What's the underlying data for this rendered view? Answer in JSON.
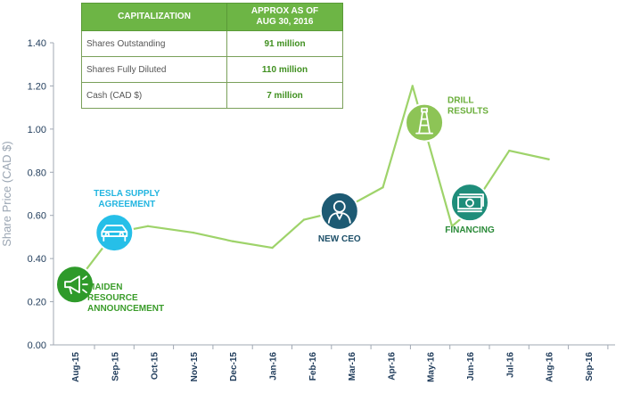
{
  "colors": {
    "line": "#9ed36a",
    "axis": "#a0a8b3",
    "tick_text": "#1f3b5a",
    "ylabel": "#9ba6b3",
    "table_header": "#6db545",
    "green_dark": "#2e9a2a",
    "green_light": "#8dc456",
    "blue_dark": "#1d5a73",
    "teal": "#1e8d7a",
    "cyan": "#26bfe8"
  },
  "capitalization": {
    "header_left": "CAPITALIZATION",
    "header_right_line1": "APPROX AS OF",
    "header_right_line2": "AUG 30, 2016",
    "rows": [
      {
        "label": "Shares Outstanding",
        "value": "91 million"
      },
      {
        "label": "Shares Fully Diluted",
        "value": "110 million"
      },
      {
        "label": "Cash (CAD $)",
        "value": "7 million"
      }
    ]
  },
  "chart_data": {
    "type": "line",
    "title": "",
    "xlabel": "",
    "ylabel": "Share Price (CAD $)",
    "ylim": [
      0,
      1.4
    ],
    "yticks": [
      "0.00",
      "0.20",
      "0.40",
      "0.60",
      "0.80",
      "1.00",
      "1.20",
      "1.40"
    ],
    "categories": [
      "Aug-15",
      "Sep-15",
      "Oct-15",
      "Nov-15",
      "Dec-15",
      "Jan-16",
      "Feb-16",
      "Mar-16",
      "Apr-16",
      "May-16",
      "Jun-16",
      "Jul-16",
      "Aug-16",
      "Sep-16"
    ],
    "points": [
      {
        "x": 0.0,
        "y": 0.28
      },
      {
        "x": 1.0,
        "y": 0.52
      },
      {
        "x": 1.85,
        "y": 0.55
      },
      {
        "x": 3.0,
        "y": 0.52
      },
      {
        "x": 4.0,
        "y": 0.48
      },
      {
        "x": 5.0,
        "y": 0.45
      },
      {
        "x": 5.8,
        "y": 0.58
      },
      {
        "x": 6.7,
        "y": 0.62
      },
      {
        "x": 7.8,
        "y": 0.73
      },
      {
        "x": 8.55,
        "y": 1.2
      },
      {
        "x": 9.55,
        "y": 0.55
      },
      {
        "x": 10.0,
        "y": 0.62
      },
      {
        "x": 11.0,
        "y": 0.9
      },
      {
        "x": 12.0,
        "y": 0.86
      }
    ],
    "annotations": [
      {
        "id": "maiden",
        "text_lines": [
          "MAIDEN",
          "RESOURCE",
          "ANNOUNCEMENT"
        ],
        "icon": "megaphone-icon",
        "x": 0.0,
        "y": 0.28,
        "color": "#2e9a2a",
        "label_color": "#3a9c2a",
        "label_pos": "right-below"
      },
      {
        "id": "tesla",
        "text_lines": [
          "TESLA SUPPLY",
          "AGREEMENT"
        ],
        "icon": "car-icon",
        "x": 1.0,
        "y": 0.52,
        "color": "#26bfe8",
        "label_color": "#22b5e0",
        "label_pos": "above"
      },
      {
        "id": "ceo",
        "text_lines": [
          "NEW CEO"
        ],
        "icon": "person-icon",
        "x": 6.7,
        "y": 0.62,
        "color": "#1d5a73",
        "label_color": "#1d4f68",
        "label_pos": "below"
      },
      {
        "id": "drill",
        "text_lines": [
          "DRILL",
          "RESULTS"
        ],
        "icon": "drill-rig-icon",
        "x": 8.85,
        "y": 1.03,
        "color": "#8dc456",
        "label_color": "#6aae3a",
        "label_pos": "right-above"
      },
      {
        "id": "financing",
        "text_lines": [
          "FINANCING"
        ],
        "icon": "money-icon",
        "x": 10.0,
        "y": 0.66,
        "color": "#1e8d7a",
        "label_color": "#2a8a38",
        "label_pos": "below"
      }
    ]
  }
}
